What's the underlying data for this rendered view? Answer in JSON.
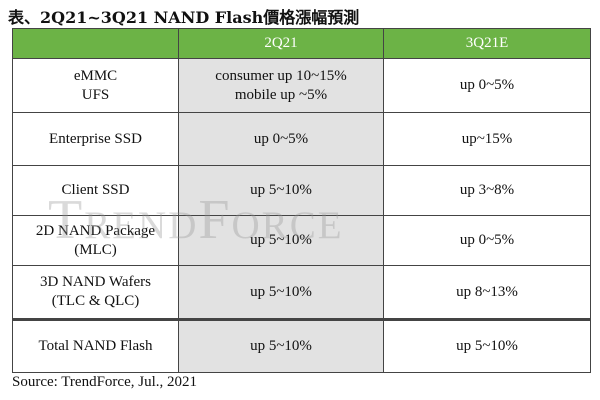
{
  "title": "表、2Q21~3Q21 NAND Flash價格漲幅預測",
  "table": {
    "header": [
      "2Q21",
      "3Q21E"
    ],
    "rows": [
      [
        [
          "eMMC",
          "UFS"
        ],
        [
          "consumer up 10~15%",
          "mobile up ~5%"
        ],
        [
          "up 0~5%"
        ]
      ],
      [
        [
          "Enterprise SSD"
        ],
        [
          "up 0~5%"
        ],
        [
          "up~15%"
        ]
      ],
      [
        [
          "Client SSD"
        ],
        [
          "up 5~10%"
        ],
        [
          "up 3~8%"
        ]
      ],
      [
        [
          "2D NAND Package",
          "(MLC)"
        ],
        [
          "up 5~10%"
        ],
        [
          "up 0~5%"
        ]
      ],
      [
        [
          "3D NAND Wafers",
          "(TLC & QLC)"
        ],
        [
          "up 5~10%"
        ],
        [
          "up 8~13%"
        ]
      ],
      [
        [
          "Total NAND Flash"
        ],
        [
          "up 5~10%"
        ],
        [
          "up 5~10%"
        ]
      ]
    ]
  },
  "watermark": "TrendForce",
  "source": "Source: TrendForce, Jul., 2021"
}
